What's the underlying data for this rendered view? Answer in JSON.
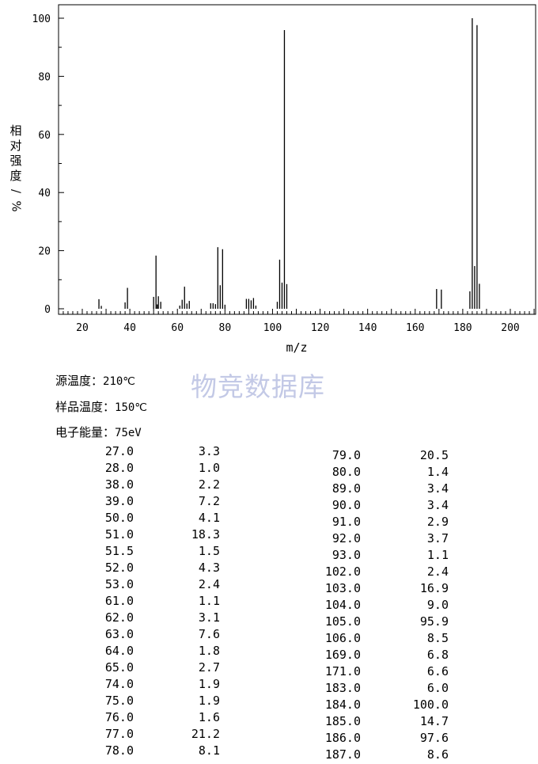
{
  "chart_data": {
    "type": "bar",
    "xlabel": "m/z",
    "ylabel": [
      "相",
      "对",
      "强",
      "度",
      "/",
      "%"
    ],
    "xlim": [
      10,
      210
    ],
    "ylim": [
      0,
      105
    ],
    "xticks": [
      20,
      40,
      60,
      80,
      100,
      120,
      140,
      160,
      180,
      200
    ],
    "yticks": [
      0,
      20,
      40,
      60,
      80,
      100
    ],
    "x": [
      27.0,
      28.0,
      38.0,
      39.0,
      50.0,
      51.0,
      51.5,
      52.0,
      53.0,
      61.0,
      62.0,
      63.0,
      64.0,
      65.0,
      74.0,
      75.0,
      76.0,
      77.0,
      78.0,
      79.0,
      80.0,
      89.0,
      90.0,
      91.0,
      92.0,
      93.0,
      102.0,
      103.0,
      104.0,
      105.0,
      106.0,
      169.0,
      171.0,
      183.0,
      184.0,
      185.0,
      186.0,
      187.0
    ],
    "values": [
      3.3,
      1.0,
      2.2,
      7.2,
      4.1,
      18.3,
      1.5,
      4.3,
      2.4,
      1.1,
      3.1,
      7.6,
      1.8,
      2.7,
      1.9,
      1.9,
      1.6,
      21.2,
      8.1,
      20.5,
      1.4,
      3.4,
      3.4,
      2.9,
      3.7,
      1.1,
      2.4,
      16.9,
      9.0,
      95.9,
      8.5,
      6.8,
      6.6,
      6.0,
      100.0,
      14.7,
      97.6,
      8.6
    ],
    "grid": false
  },
  "watermark": "物竞数据库",
  "conditions": {
    "source_temp_label": "源温度：",
    "source_temp_value": "210℃",
    "sample_temp_label": "样品温度：",
    "sample_temp_value": "150℃",
    "energy_label": "电子能量：",
    "energy_value": "75eV"
  },
  "peak_table": {
    "left": [
      [
        "27.0",
        "3.3"
      ],
      [
        "28.0",
        "1.0"
      ],
      [
        "38.0",
        "2.2"
      ],
      [
        "39.0",
        "7.2"
      ],
      [
        "50.0",
        "4.1"
      ],
      [
        "51.0",
        "18.3"
      ],
      [
        "51.5",
        "1.5"
      ],
      [
        "52.0",
        "4.3"
      ],
      [
        "53.0",
        "2.4"
      ],
      [
        "61.0",
        "1.1"
      ],
      [
        "62.0",
        "3.1"
      ],
      [
        "63.0",
        "7.6"
      ],
      [
        "64.0",
        "1.8"
      ],
      [
        "65.0",
        "2.7"
      ],
      [
        "74.0",
        "1.9"
      ],
      [
        "75.0",
        "1.9"
      ],
      [
        "76.0",
        "1.6"
      ],
      [
        "77.0",
        "21.2"
      ],
      [
        "78.0",
        "8.1"
      ]
    ],
    "right": [
      [
        "79.0",
        "20.5"
      ],
      [
        "80.0",
        "1.4"
      ],
      [
        "89.0",
        "3.4"
      ],
      [
        "90.0",
        "3.4"
      ],
      [
        "91.0",
        "2.9"
      ],
      [
        "92.0",
        "3.7"
      ],
      [
        "93.0",
        "1.1"
      ],
      [
        "102.0",
        "2.4"
      ],
      [
        "103.0",
        "16.9"
      ],
      [
        "104.0",
        "9.0"
      ],
      [
        "105.0",
        "95.9"
      ],
      [
        "106.0",
        "8.5"
      ],
      [
        "169.0",
        "6.8"
      ],
      [
        "171.0",
        "6.6"
      ],
      [
        "183.0",
        "6.0"
      ],
      [
        "184.0",
        "100.0"
      ],
      [
        "185.0",
        "14.7"
      ],
      [
        "186.0",
        "97.6"
      ],
      [
        "187.0",
        "8.6"
      ]
    ]
  }
}
